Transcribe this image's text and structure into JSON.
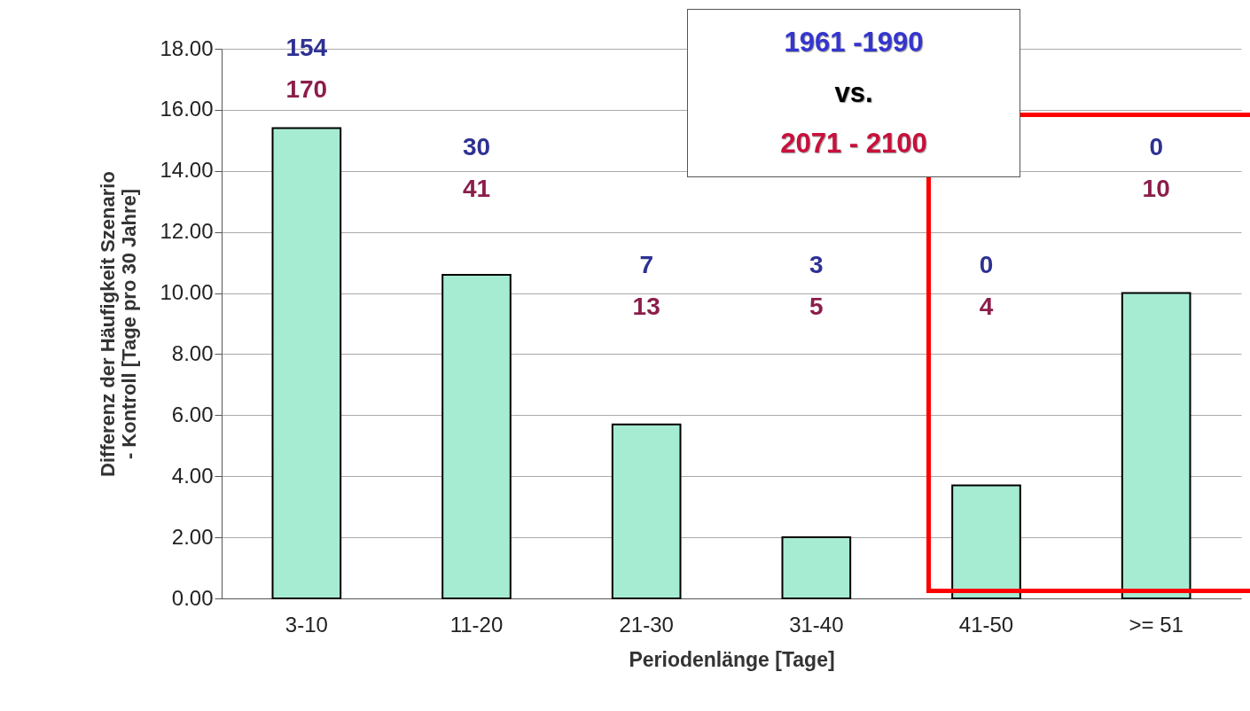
{
  "chart_data": {
    "type": "bar",
    "xlabel": "Periodenlänge [Tage]",
    "ylabel": "Differenz der Häufigkeit Szenario - Kontroll [Tage pro 30 Jahre]",
    "categories": [
      "3-10",
      "11-20",
      "21-30",
      "31-40",
      "41-50",
      ">= 51"
    ],
    "values": [
      15.4,
      10.6,
      5.7,
      2.0,
      3.7,
      10.0
    ],
    "color": "#a6ecd2",
    "ylim": [
      0,
      18
    ],
    "yticks": [
      {
        "value": 0,
        "label": "0.00"
      },
      {
        "value": 2,
        "label": "2.00"
      },
      {
        "value": 4,
        "label": "4.00"
      },
      {
        "value": 6,
        "label": "6.00"
      },
      {
        "value": 8,
        "label": "8.00"
      },
      {
        "value": 10,
        "label": "10.00"
      },
      {
        "value": 12,
        "label": "12.00"
      },
      {
        "value": 14,
        "label": "14.00"
      },
      {
        "value": 16,
        "label": "16.00"
      },
      {
        "value": 18,
        "label": "18.00"
      }
    ],
    "grid": "y",
    "annotations": [
      "1961 -1990",
      "vs.",
      "2071 - 2100",
      "154",
      "170",
      "30",
      "41",
      "7",
      "13",
      "3",
      "5",
      "0",
      "4",
      "0",
      "10"
    ]
  }
}
